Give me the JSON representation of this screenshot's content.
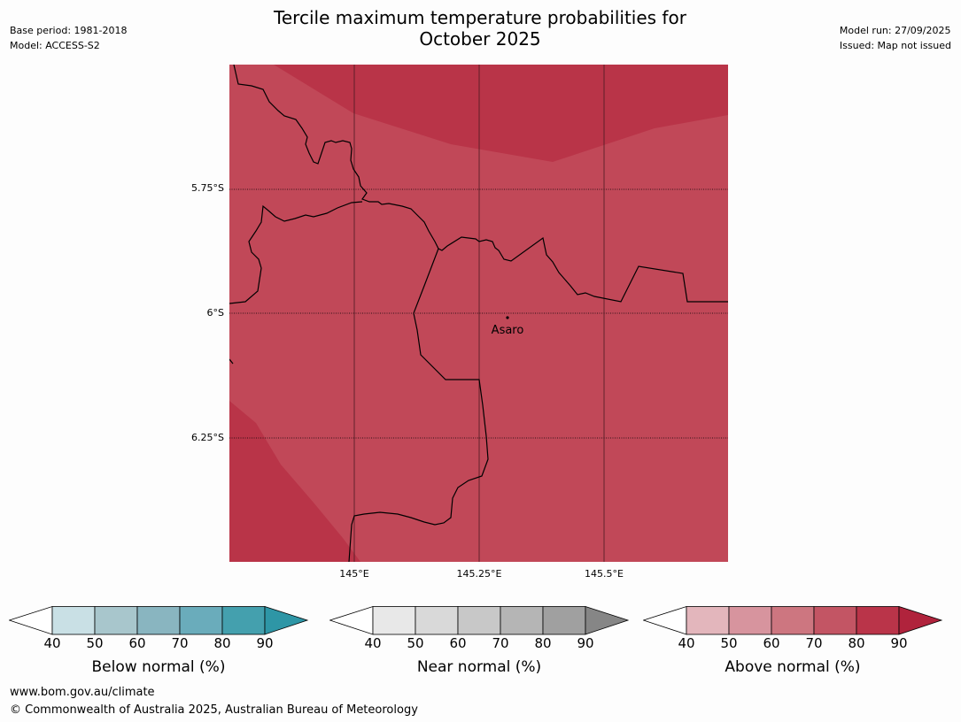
{
  "title_line1": "Tercile maximum temperature probabilities for",
  "title_line2": "October 2025",
  "meta_left": {
    "base_period": "Base period: 1981-2018",
    "model": "Model: ACCESS-S2"
  },
  "meta_right": {
    "model_run": "Model run: 27/09/2025",
    "issued": "Issued: Map not issued"
  },
  "map": {
    "lat_labels": [
      "5.75°S",
      "6°S",
      "6.25°S"
    ],
    "lon_labels": [
      "145°E",
      "145.25°E",
      "145.5°E"
    ],
    "place_label": "Asaro",
    "colors": {
      "base": "#c14858",
      "dark": "#b93448",
      "border": "#000000"
    }
  },
  "colorbars": [
    {
      "label": "Below normal (%)",
      "ticks": [
        "40",
        "50",
        "60",
        "70",
        "80",
        "90"
      ],
      "colors": [
        "#ffffff",
        "#c9e0e5",
        "#a8c6cc",
        "#89b5c0",
        "#6aacbb",
        "#44a0ae",
        "#2e96a6"
      ]
    },
    {
      "label": "Near normal (%)",
      "ticks": [
        "40",
        "50",
        "60",
        "70",
        "80",
        "90"
      ],
      "colors": [
        "#ffffff",
        "#e8e8e8",
        "#d9d9d9",
        "#c8c8c8",
        "#b5b5b5",
        "#a0a0a0",
        "#868686"
      ]
    },
    {
      "label": "Above normal (%)",
      "ticks": [
        "40",
        "50",
        "60",
        "70",
        "80",
        "90"
      ],
      "colors": [
        "#ffffff",
        "#e3b6bc",
        "#d7949e",
        "#cd7680",
        "#c35564",
        "#ba3449",
        "#b0233c"
      ]
    }
  ],
  "footer": {
    "url": "www.bom.gov.au/climate",
    "copyright": "© Commonwealth of Australia 2025, Australian Bureau of Meteorology"
  }
}
